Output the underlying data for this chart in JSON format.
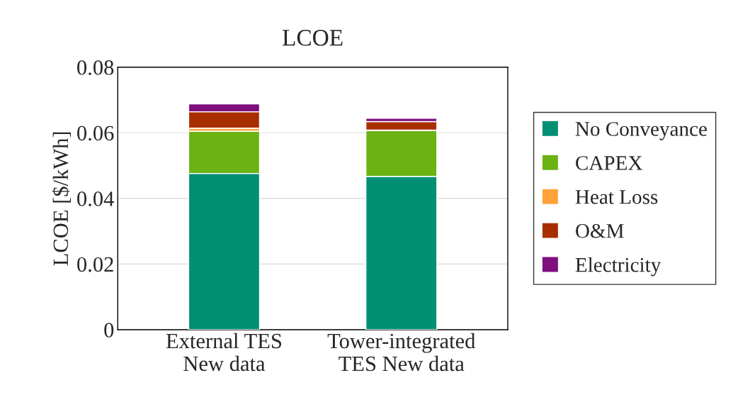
{
  "chart_data": {
    "type": "bar",
    "title": "LCOE",
    "ylabel": "LCOE [$/kWh]",
    "stacked": true,
    "categories": [
      "External TES\nNew data",
      "Tower-integrated\nTES New data"
    ],
    "series": [
      {
        "name": "No Conveyance",
        "color": "#008f72",
        "values": [
          0.0476,
          0.0467
        ]
      },
      {
        "name": "CAPEX",
        "color": "#6bb213",
        "values": [
          0.0129,
          0.014
        ]
      },
      {
        "name": "Heat Loss",
        "color": "#ffa23a",
        "values": [
          0.0009,
          0.0001
        ]
      },
      {
        "name": "O&M",
        "color": "#a82d00",
        "values": [
          0.005,
          0.0026
        ]
      },
      {
        "name": "Electricity",
        "color": "#7f0e7f",
        "values": [
          0.0024,
          0.001
        ]
      }
    ],
    "ylim": [
      0,
      0.08
    ],
    "yticks": [
      {
        "value": 0,
        "label": "0"
      },
      0.02,
      0.04,
      0.06,
      0.08
    ],
    "grid": "y",
    "legend": "right"
  }
}
